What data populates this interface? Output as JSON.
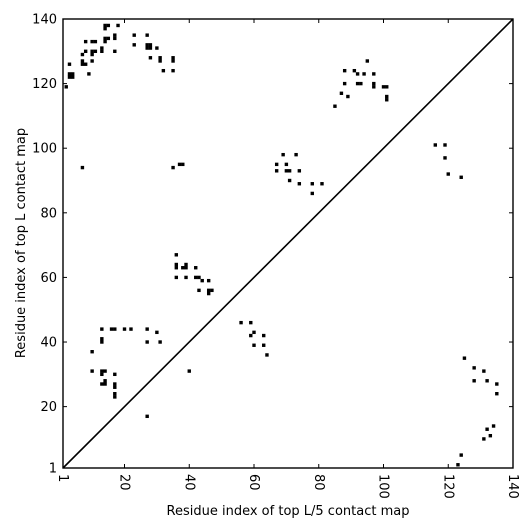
{
  "chart_data": {
    "type": "scatter",
    "xlabel": "Residue index of top L/5 contact map",
    "ylabel": "Residue index of top L contact map",
    "xlim": [
      1,
      140
    ],
    "ylim": [
      1,
      140
    ],
    "xticks": [
      1,
      20,
      40,
      60,
      80,
      100,
      120,
      140
    ],
    "yticks": [
      1,
      20,
      40,
      60,
      80,
      100,
      120,
      140
    ],
    "xtick_labels": [
      "1",
      "20",
      "40",
      "60",
      "80",
      "100",
      "120",
      "140"
    ],
    "ytick_labels": [
      "1",
      "20",
      "40",
      "60",
      "80",
      "100",
      "120",
      "140"
    ],
    "diagonal": true,
    "marker": "square",
    "marker_color": "#000000",
    "upper_points": [
      [
        3,
        122
      ],
      [
        3,
        123
      ],
      [
        4,
        122
      ],
      [
        4,
        123
      ],
      [
        2,
        119
      ],
      [
        3,
        126
      ],
      [
        7,
        94
      ],
      [
        7,
        126
      ],
      [
        7,
        127
      ],
      [
        7,
        129
      ],
      [
        8,
        126
      ],
      [
        8,
        130
      ],
      [
        8,
        133
      ],
      [
        9,
        123
      ],
      [
        10,
        127
      ],
      [
        10,
        129
      ],
      [
        10,
        130
      ],
      [
        10,
        133
      ],
      [
        11,
        130
      ],
      [
        11,
        133
      ],
      [
        13,
        130
      ],
      [
        13,
        131
      ],
      [
        14,
        133
      ],
      [
        14,
        134
      ],
      [
        14,
        137
      ],
      [
        14,
        138
      ],
      [
        15,
        134
      ],
      [
        15,
        138
      ],
      [
        17,
        130
      ],
      [
        17,
        134
      ],
      [
        17,
        135
      ],
      [
        18,
        138
      ],
      [
        23,
        132
      ],
      [
        23,
        135
      ],
      [
        27,
        131
      ],
      [
        27,
        132
      ],
      [
        27,
        135
      ],
      [
        28,
        128
      ],
      [
        28,
        131
      ],
      [
        28,
        132
      ],
      [
        30,
        131
      ],
      [
        31,
        127
      ],
      [
        31,
        128
      ],
      [
        32,
        124
      ],
      [
        35,
        124
      ],
      [
        35,
        127
      ],
      [
        35,
        128
      ],
      [
        35,
        94
      ],
      [
        37,
        95
      ],
      [
        38,
        95
      ],
      [
        67,
        95
      ],
      [
        67,
        93
      ],
      [
        69,
        98
      ],
      [
        70,
        93
      ],
      [
        70,
        95
      ],
      [
        71,
        90
      ],
      [
        71,
        93
      ],
      [
        73,
        98
      ],
      [
        74,
        93
      ],
      [
        74,
        89
      ],
      [
        78,
        89
      ],
      [
        78,
        86
      ],
      [
        81,
        89
      ],
      [
        85,
        113
      ],
      [
        87,
        117
      ],
      [
        88,
        120
      ],
      [
        88,
        124
      ],
      [
        89,
        116
      ],
      [
        91,
        124
      ],
      [
        92,
        120
      ],
      [
        92,
        123
      ],
      [
        93,
        120
      ],
      [
        94,
        123
      ],
      [
        95,
        127
      ],
      [
        97,
        119
      ],
      [
        97,
        120
      ],
      [
        97,
        123
      ],
      [
        100,
        119
      ],
      [
        101,
        119
      ],
      [
        101,
        116
      ],
      [
        101,
        115
      ],
      [
        116,
        101
      ],
      [
        119,
        101
      ],
      [
        119,
        97
      ],
      [
        120,
        92
      ],
      [
        124,
        91
      ]
    ],
    "lower_points": [
      [
        10,
        37
      ],
      [
        10,
        31
      ],
      [
        13,
        44
      ],
      [
        13,
        41
      ],
      [
        13,
        40
      ],
      [
        13,
        31
      ],
      [
        13,
        30
      ],
      [
        13,
        27
      ],
      [
        14,
        31
      ],
      [
        14,
        28
      ],
      [
        14,
        27
      ],
      [
        16,
        44
      ],
      [
        17,
        44
      ],
      [
        17,
        30
      ],
      [
        17,
        27
      ],
      [
        17,
        26
      ],
      [
        17,
        24
      ],
      [
        17,
        23
      ],
      [
        20,
        44
      ],
      [
        22,
        44
      ],
      [
        27,
        44
      ],
      [
        27,
        40
      ],
      [
        27,
        17
      ],
      [
        30,
        43
      ],
      [
        31,
        40
      ],
      [
        36,
        67
      ],
      [
        36,
        64
      ],
      [
        36,
        63
      ],
      [
        36,
        60
      ],
      [
        38,
        63
      ],
      [
        39,
        64
      ],
      [
        39,
        63
      ],
      [
        39,
        60
      ],
      [
        40,
        31
      ],
      [
        42,
        63
      ],
      [
        42,
        60
      ],
      [
        43,
        60
      ],
      [
        43,
        56
      ],
      [
        44,
        59
      ],
      [
        46,
        59
      ],
      [
        46,
        56
      ],
      [
        46,
        55
      ],
      [
        47,
        56
      ],
      [
        56,
        46
      ],
      [
        59,
        46
      ],
      [
        59,
        42
      ],
      [
        60,
        43
      ],
      [
        60,
        39
      ],
      [
        63,
        42
      ],
      [
        63,
        39
      ],
      [
        64,
        36
      ],
      [
        123,
        2
      ],
      [
        124,
        5
      ],
      [
        125,
        35
      ],
      [
        128,
        32
      ],
      [
        128,
        28
      ],
      [
        131,
        31
      ],
      [
        131,
        10
      ],
      [
        132,
        13
      ],
      [
        132,
        28
      ],
      [
        133,
        11
      ],
      [
        134,
        14
      ],
      [
        135,
        27
      ],
      [
        135,
        24
      ]
    ]
  }
}
